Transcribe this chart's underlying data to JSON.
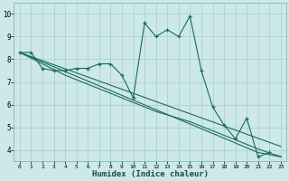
{
  "xlabel": "Humidex (Indice chaleur)",
  "background_color": "#cce8e8",
  "grid_color": "#aacccc",
  "line_color": "#1a6b5e",
  "xlim": [
    -0.5,
    23.5
  ],
  "ylim": [
    3.5,
    10.5
  ],
  "xticks": [
    0,
    1,
    2,
    3,
    4,
    5,
    6,
    7,
    8,
    9,
    10,
    11,
    12,
    13,
    14,
    15,
    16,
    17,
    18,
    19,
    20,
    21,
    22,
    23
  ],
  "yticks": [
    4,
    5,
    6,
    7,
    8,
    9,
    10
  ],
  "x_data": [
    0,
    1,
    2,
    3,
    4,
    5,
    6,
    7,
    8,
    9,
    10,
    11,
    12,
    13,
    14,
    15,
    16,
    17,
    18,
    19,
    20,
    21,
    22,
    23
  ],
  "y_main": [
    8.3,
    8.3,
    7.6,
    7.5,
    7.5,
    7.6,
    7.6,
    7.8,
    7.8,
    7.3,
    6.3,
    9.6,
    9.0,
    9.3,
    9.0,
    9.9,
    7.5,
    5.9,
    5.1,
    4.5,
    5.4,
    3.7,
    3.9,
    null
  ],
  "y_trend1": [
    8.3,
    8.12,
    7.94,
    7.76,
    7.58,
    7.4,
    7.22,
    7.04,
    6.86,
    6.68,
    6.5,
    6.32,
    6.14,
    5.96,
    5.78,
    5.6,
    5.42,
    5.24,
    5.06,
    4.88,
    4.7,
    4.52,
    4.34,
    4.16
  ],
  "y_trend2": [
    8.3,
    8.09,
    7.88,
    7.67,
    7.46,
    7.25,
    7.04,
    6.83,
    6.62,
    6.41,
    6.2,
    5.99,
    5.78,
    5.57,
    5.36,
    5.15,
    4.94,
    4.73,
    4.52,
    4.31,
    4.1,
    3.89,
    3.8,
    3.7
  ],
  "y_trend3": [
    8.3,
    8.05,
    7.8,
    7.55,
    7.3,
    7.1,
    6.9,
    6.7,
    6.5,
    6.3,
    6.1,
    5.9,
    5.7,
    5.55,
    5.4,
    5.25,
    5.05,
    4.85,
    4.65,
    4.45,
    4.25,
    4.05,
    3.87,
    3.72
  ]
}
